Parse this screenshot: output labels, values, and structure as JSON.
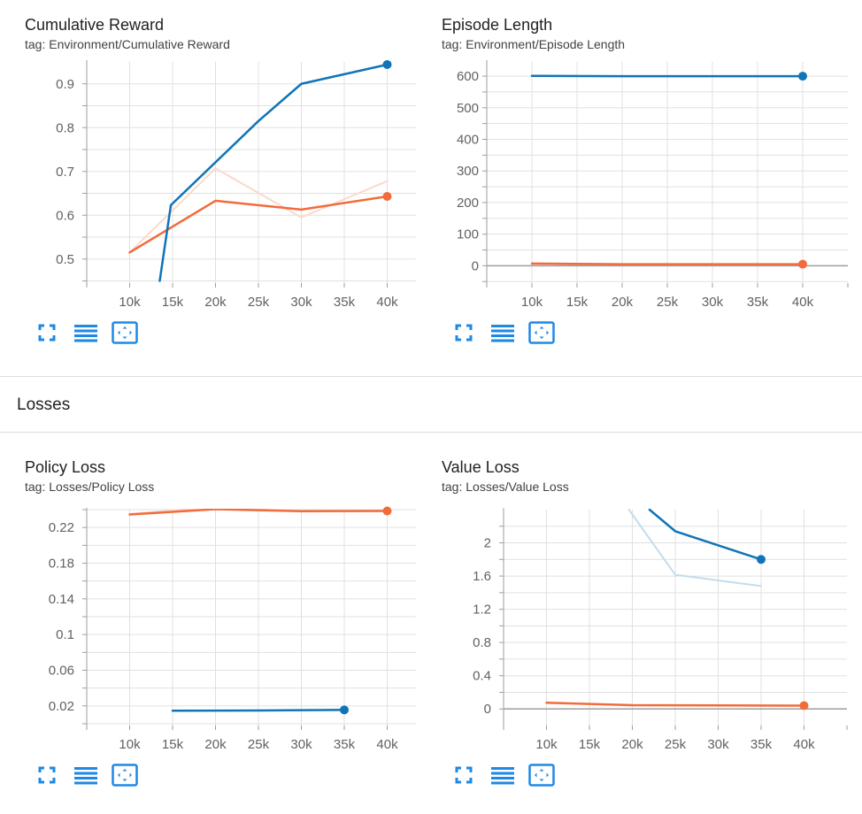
{
  "section": {
    "title": "Losses"
  },
  "colors": {
    "blue": "#0f74b8",
    "orange": "#f26b3a",
    "blue_raw": "#c3dcec",
    "orange_raw": "#fbd9cc",
    "grid": "#e0e0e0",
    "axis": "#9e9e9e",
    "tick_text": "#616161",
    "icon": "#1e88e5"
  },
  "toolbar": {
    "icons": [
      "fullscreen-icon",
      "toggle-y-log-icon",
      "fit-domain-icon"
    ]
  },
  "chart_data": [
    {
      "id": "cumulative-reward",
      "type": "line",
      "title": "Cumulative Reward",
      "tag": "tag: Environment/Cumulative Reward",
      "xlim": [
        5000,
        45000
      ],
      "ylim": [
        0.445,
        0.95
      ],
      "x_ticks": [
        10000,
        15000,
        20000,
        25000,
        30000,
        35000,
        40000
      ],
      "x_tick_labels": [
        "10k",
        "15k",
        "20k",
        "25k",
        "30k",
        "35k",
        "40k"
      ],
      "y_ticks": [
        0.5,
        0.6,
        0.7,
        0.8,
        0.9
      ],
      "y_tick_labels": [
        "0.5",
        "0.6",
        "0.7",
        "0.8",
        "0.9"
      ],
      "y_minor": [
        0.45,
        0.55,
        0.65,
        0.75,
        0.85
      ],
      "series": [
        {
          "name": "orange-raw",
          "color": "#fbd9cc",
          "width": 2,
          "x": [
            10000,
            20000,
            30000,
            40000
          ],
          "y": [
            0.515,
            0.707,
            0.595,
            0.678
          ]
        },
        {
          "name": "orange",
          "color": "#f26b3a",
          "width": 2.5,
          "dot": true,
          "x": [
            10000,
            20000,
            30000,
            40000
          ],
          "y": [
            0.515,
            0.633,
            0.613,
            0.643
          ]
        },
        {
          "name": "blue",
          "color": "#0f74b8",
          "width": 2.5,
          "dot": true,
          "x": [
            13500,
            14800,
            25000,
            30000,
            40000
          ],
          "y": [
            0.45,
            0.623,
            0.815,
            0.9,
            0.944
          ]
        }
      ]
    },
    {
      "id": "episode-length",
      "type": "line",
      "title": "Episode Length",
      "tag": "tag: Environment/Episode Length",
      "xlim": [
        5000,
        45000
      ],
      "ylim": [
        -55,
        645
      ],
      "zero_line": true,
      "x_ticks": [
        10000,
        15000,
        20000,
        25000,
        30000,
        35000,
        40000
      ],
      "x_tick_labels": [
        "10k",
        "15k",
        "20k",
        "25k",
        "30k",
        "35k",
        "40k"
      ],
      "y_ticks": [
        0,
        100,
        200,
        300,
        400,
        500,
        600
      ],
      "y_tick_labels": [
        "0",
        "100",
        "200",
        "300",
        "400",
        "500",
        "600"
      ],
      "y_minor": [
        -50,
        50,
        150,
        250,
        350,
        450,
        550
      ],
      "series": [
        {
          "name": "blue",
          "color": "#0f74b8",
          "width": 2.5,
          "dot": true,
          "x": [
            10000,
            20000,
            30000,
            40000
          ],
          "y": [
            601,
            600,
            600,
            600
          ]
        },
        {
          "name": "orange",
          "color": "#f26b3a",
          "width": 2.5,
          "dot": true,
          "x": [
            10000,
            20000,
            30000,
            40000
          ],
          "y": [
            7,
            5,
            5,
            5
          ]
        }
      ]
    },
    {
      "id": "policy-loss",
      "type": "line",
      "title": "Policy Loss",
      "tag": "tag: Losses/Policy Loss",
      "xlim": [
        5000,
        45000
      ],
      "ylim": [
        -0.002,
        0.24
      ],
      "x_ticks": [
        10000,
        15000,
        20000,
        25000,
        30000,
        35000,
        40000
      ],
      "x_tick_labels": [
        "10k",
        "15k",
        "20k",
        "25k",
        "30k",
        "35k",
        "40k"
      ],
      "y_ticks": [
        0.02,
        0.06,
        0.1,
        0.14,
        0.18,
        0.22
      ],
      "y_tick_labels": [
        "0.02",
        "0.06",
        "0.1",
        "0.14",
        "0.18",
        "0.22"
      ],
      "y_minor": [
        0,
        0.04,
        0.08,
        0.12,
        0.16,
        0.2,
        0.24
      ],
      "series": [
        {
          "name": "orange-raw",
          "color": "#fbd9cc",
          "width": 2,
          "x": [
            10000,
            20000,
            30000,
            40000
          ],
          "y": [
            0.2352,
            0.2432,
            0.2378,
            0.2385
          ]
        },
        {
          "name": "orange",
          "color": "#f26b3a",
          "width": 2.5,
          "dot": true,
          "x": [
            10000,
            20000,
            30000,
            40000
          ],
          "y": [
            0.2345,
            0.2405,
            0.2383,
            0.2385
          ]
        },
        {
          "name": "blue",
          "color": "#0f74b8",
          "width": 2.5,
          "dot": true,
          "x": [
            15000,
            25000,
            35000
          ],
          "y": [
            0.0146,
            0.0148,
            0.0155
          ]
        }
      ]
    },
    {
      "id": "value-loss",
      "type": "line",
      "title": "Value Loss",
      "tag": "tag: Losses/Value Loss",
      "xlim": [
        5000,
        45000
      ],
      "ylim": [
        -0.2,
        2.4
      ],
      "zero_line": true,
      "x_ticks": [
        10000,
        15000,
        20000,
        25000,
        30000,
        35000,
        40000
      ],
      "x_tick_labels": [
        "10k",
        "15k",
        "20k",
        "25k",
        "30k",
        "35k",
        "40k"
      ],
      "y_ticks": [
        0,
        0.4,
        0.8,
        1.2,
        1.6,
        2
      ],
      "y_tick_labels": [
        "0",
        "0.4",
        "0.8",
        "1.2",
        "1.6",
        "2"
      ],
      "y_minor": [
        0.2,
        0.6,
        1.0,
        1.4,
        1.8,
        2.2
      ],
      "series": [
        {
          "name": "blue-raw",
          "color": "#c3dcec",
          "width": 2,
          "x": [
            19600,
            25000,
            35000
          ],
          "y": [
            2.4,
            1.615,
            1.48
          ]
        },
        {
          "name": "blue",
          "color": "#0f74b8",
          "width": 2.5,
          "dot": true,
          "x": [
            22000,
            25000,
            35000
          ],
          "y": [
            2.4,
            2.14,
            1.8
          ]
        },
        {
          "name": "orange",
          "color": "#f26b3a",
          "width": 2.5,
          "dot": true,
          "x": [
            10000,
            20000,
            30000,
            40000
          ],
          "y": [
            0.075,
            0.045,
            0.042,
            0.04
          ]
        }
      ]
    }
  ]
}
